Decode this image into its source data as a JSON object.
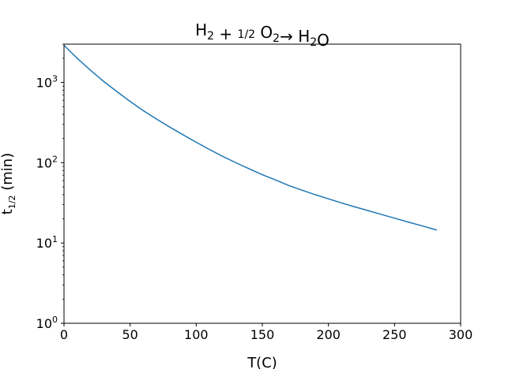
{
  "chart_data": {
    "type": "line",
    "title": "H2 + 1/2 O2 → H2O",
    "xlabel": "T(C)",
    "ylabel": "t1/2 (min)",
    "xlim": [
      0,
      300
    ],
    "ylim": [
      1,
      3000
    ],
    "yscale": "log",
    "grid": false,
    "legend": "none",
    "x_ticks": [
      "0",
      "50",
      "100",
      "150",
      "200",
      "250",
      "300"
    ],
    "y_ticks": [
      {
        "base": "10",
        "exp": "0"
      },
      {
        "base": "10",
        "exp": "1"
      },
      {
        "base": "10",
        "exp": "2"
      },
      {
        "base": "10",
        "exp": "3"
      }
    ],
    "series": [
      {
        "color": "#1f77b4",
        "x": [
          0,
          10,
          20,
          30,
          40,
          50,
          60,
          70,
          80,
          90,
          100,
          110,
          120,
          130,
          140,
          150,
          160,
          170,
          180,
          190,
          200,
          210,
          220,
          230,
          240,
          250,
          260,
          270,
          282
        ],
        "y": [
          2900,
          2000,
          1420,
          1030,
          770,
          580,
          445,
          350,
          278,
          223,
          180,
          146,
          120,
          100,
          84,
          71,
          61,
          52,
          45.5,
          40,
          35.5,
          31.5,
          28.2,
          25.3,
          22.7,
          20.4,
          18.3,
          16.5,
          14.5
        ]
      }
    ]
  }
}
